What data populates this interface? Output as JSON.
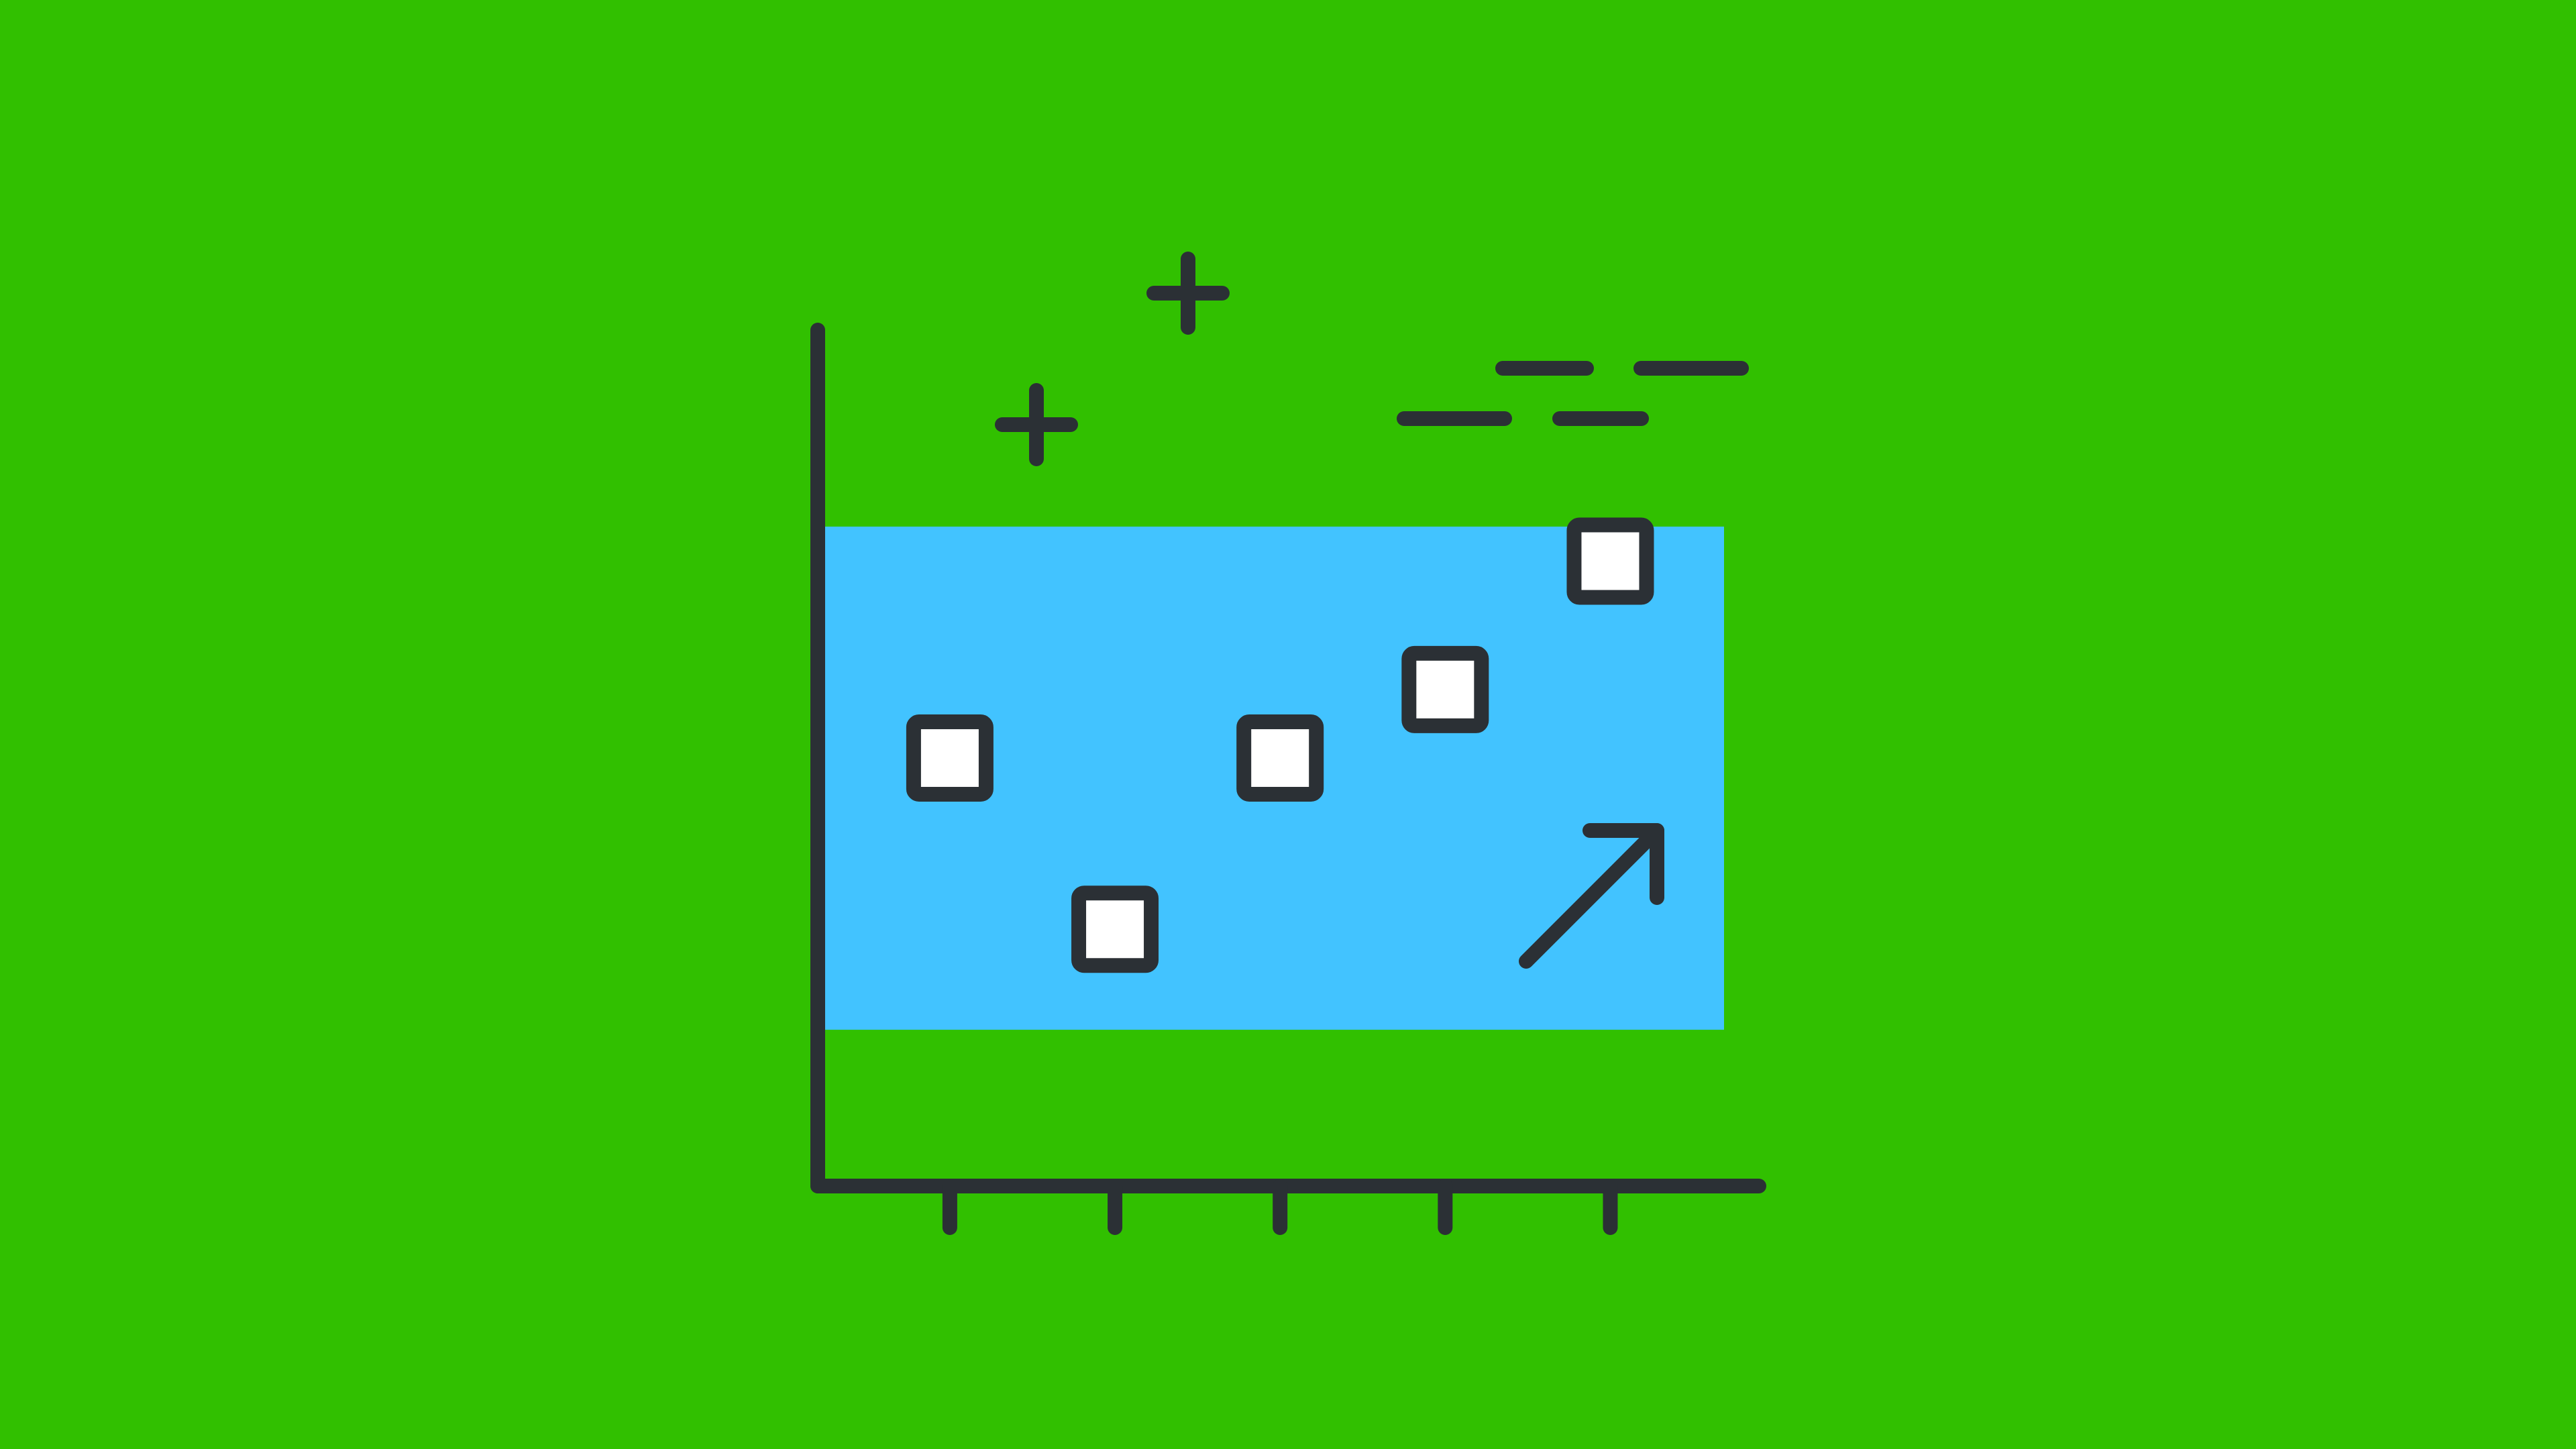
{
  "illustration": {
    "icon": "scatter-trend-chart-icon",
    "background_color": "#31c000",
    "band_color": "#42c3ff",
    "stroke_color": "#2b3035",
    "marker_fill": "#ffffff",
    "decorations": [
      "plus-icon",
      "plus-icon",
      "dash-lines-icon",
      "trend-arrow-up-icon"
    ]
  },
  "chart_data": {
    "type": "scatter",
    "x": [
      1,
      2,
      3,
      4,
      5
    ],
    "y": [
      0.5,
      0.3,
      0.5,
      0.58,
      0.73
    ],
    "xlim": [
      0.2,
      5.9
    ],
    "ylim": [
      0,
      1
    ],
    "title": "",
    "xlabel": "",
    "ylabel": "",
    "x_ticks": [
      1,
      2,
      3,
      4,
      5
    ],
    "grid": false,
    "legend": "none",
    "marker": "square"
  }
}
